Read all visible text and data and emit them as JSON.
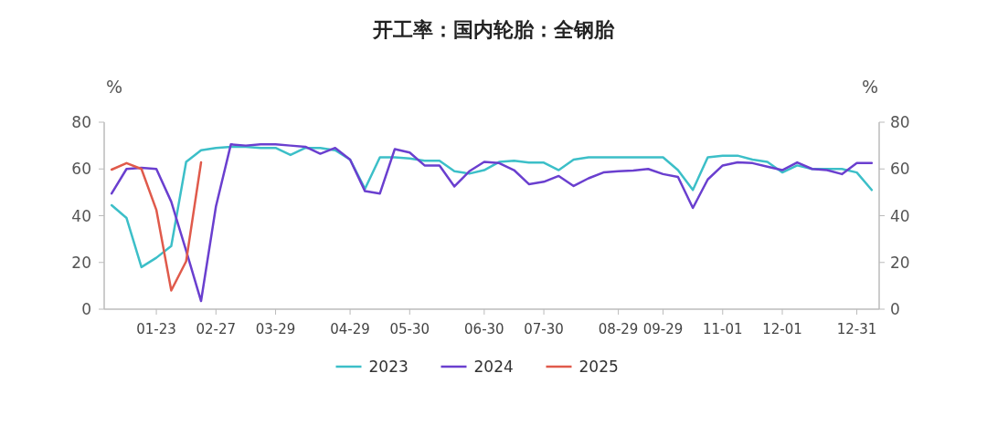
{
  "chart_data": {
    "type": "line",
    "title": "开工率：国内轮胎：全钢胎",
    "ylabel": "%",
    "y2label": "%",
    "categories": [
      null,
      null,
      null,
      "01-23",
      null,
      null,
      null,
      "02-27",
      null,
      null,
      null,
      "03-29",
      null,
      null,
      null,
      null,
      "04-29",
      null,
      null,
      null,
      "05-30",
      null,
      null,
      null,
      null,
      "06-30",
      null,
      null,
      null,
      "07-30",
      null,
      null,
      null,
      null,
      "08-29",
      null,
      null,
      "09-29",
      null,
      null,
      null,
      "11-01",
      null,
      null,
      null,
      "12-01",
      null,
      null,
      null,
      null,
      "12-31",
      null
    ],
    "series": [
      {
        "name": "2023",
        "color": "#3cbfc8",
        "values": [
          44.5,
          39,
          18,
          22,
          27,
          63,
          68,
          69,
          69.5,
          69.5,
          69,
          69,
          66,
          69,
          69,
          68,
          64,
          51.5,
          65,
          65,
          64.5,
          63.5,
          63.5,
          59,
          58,
          59.5,
          63,
          63.5,
          62.7,
          62.7,
          59.5,
          64,
          65,
          65,
          65,
          65,
          65,
          65,
          59.5,
          51,
          65,
          65.7,
          65.7,
          64,
          63,
          58.5,
          61.5,
          60,
          60,
          60,
          58.5,
          51
        ]
      },
      {
        "name": "2024",
        "color": "#6a3fcf",
        "values": [
          49.5,
          60,
          60.5,
          60,
          46,
          25,
          3.5,
          44,
          70.5,
          70,
          70.5,
          70.5,
          70,
          69.5,
          66.5,
          69,
          64,
          50.5,
          49.5,
          68.5,
          67,
          61.5,
          61.5,
          52.5,
          59,
          63,
          62.5,
          59.5,
          53.5,
          54.5,
          57,
          52.7,
          56,
          58.5,
          59,
          59.3,
          60,
          57.8,
          56.6,
          43.3,
          55.5,
          61.5,
          62.8,
          62.5,
          61,
          59.5,
          62.8,
          60,
          59.5,
          57.8,
          62.5,
          62.5
        ]
      },
      {
        "name": "2025",
        "color": "#e05a4b",
        "values": [
          59.7,
          62.5,
          60,
          42.5,
          8,
          20.5,
          62.8,
          null,
          null,
          null,
          null,
          null,
          null,
          null,
          null,
          null,
          null,
          null,
          null,
          null,
          null,
          null,
          null,
          null,
          null,
          null,
          null,
          null,
          null,
          null,
          null,
          null,
          null,
          null,
          null,
          null,
          null,
          null,
          null,
          null,
          null,
          null,
          null,
          null,
          null,
          null,
          null,
          null,
          null,
          null,
          null,
          null
        ]
      }
    ],
    "ylim": [
      0,
      80
    ],
    "yticks": [
      0,
      20,
      40,
      60,
      80
    ],
    "y2lim": [
      0,
      80
    ],
    "y2ticks": [
      0,
      20,
      40,
      60,
      80
    ],
    "legend": "bottom"
  }
}
